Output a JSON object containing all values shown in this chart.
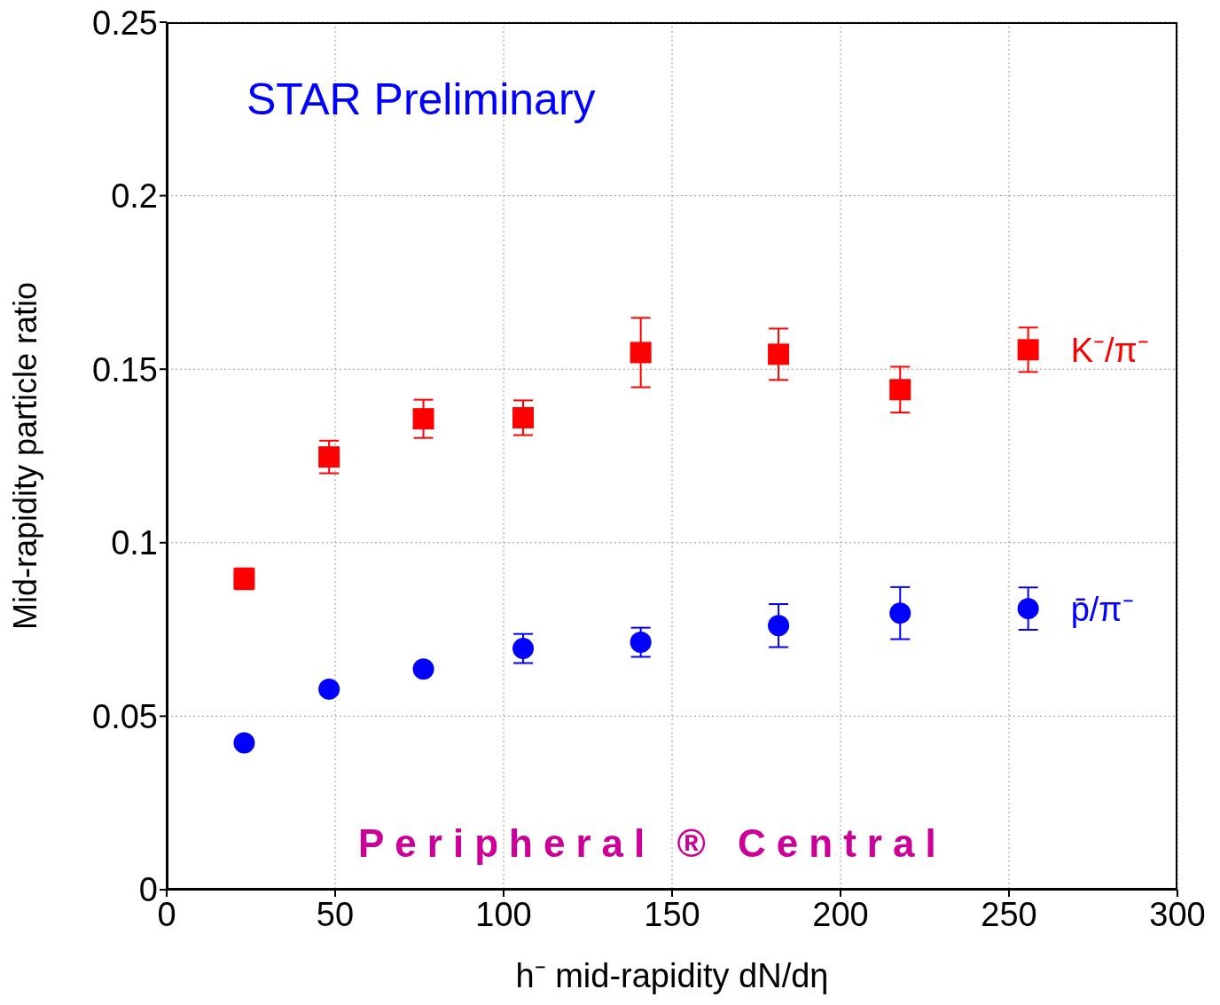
{
  "chart_data": {
    "type": "scatter",
    "xlabel": "h⁻ mid-rapidity dN/dη",
    "ylabel": "Mid-rapidity particle ratio",
    "annotations": [
      "STAR Preliminary",
      "Peripheral ® Central"
    ],
    "x": [
      23,
      48.2,
      76.2,
      105.8,
      140.7,
      181.6,
      217.7,
      255.7
    ],
    "series": [
      {
        "name": "K⁻/π⁻",
        "color": "#ff0000",
        "marker": "square",
        "values": [
          0.0896,
          0.1247,
          0.1357,
          0.136,
          0.1548,
          0.1543,
          0.1441,
          0.1556
        ],
        "errors": [
          0.003,
          0.0047,
          0.0055,
          0.005,
          0.01,
          0.0074,
          0.0066,
          0.0064
        ]
      },
      {
        "name": "p̄/π⁻",
        "color": "#0000ff",
        "marker": "circle",
        "values": [
          0.0423,
          0.0578,
          0.0636,
          0.0695,
          0.0713,
          0.0761,
          0.0797,
          0.081
        ],
        "errors": [
          null,
          null,
          null,
          0.0042,
          0.0042,
          0.0062,
          0.0075,
          0.0061
        ]
      }
    ],
    "xlim": [
      0,
      300
    ],
    "xticks": [
      0,
      50,
      100,
      150,
      200,
      250,
      300
    ],
    "ylim": [
      0,
      0.25
    ],
    "yticks": [
      0,
      0.05,
      0.1,
      0.15,
      0.2,
      0.25
    ],
    "grid": true
  }
}
